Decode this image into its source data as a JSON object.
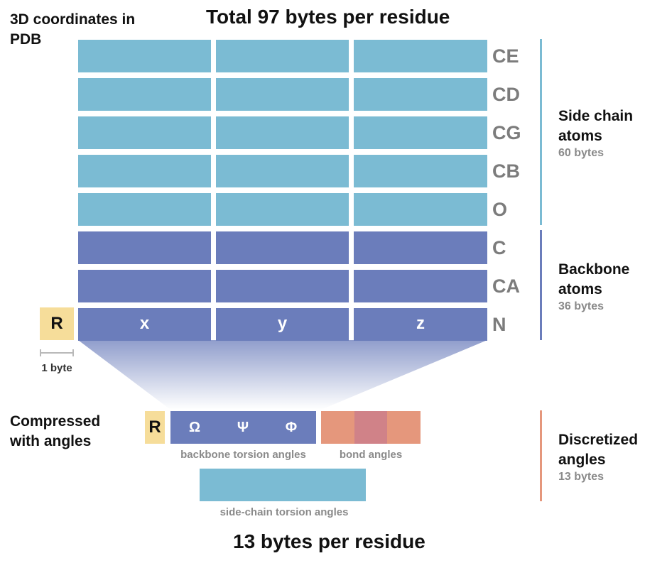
{
  "top_title": "Total 97 bytes per residue",
  "bottom_title": "13 bytes per residue",
  "pdb_label": "3D coordinates in PDB",
  "compressed_label": "Compressed with angles",
  "atoms": [
    "CE",
    "CD",
    "CG",
    "CB",
    "O",
    "C",
    "CA",
    "N"
  ],
  "coords": [
    "x",
    "y",
    "z"
  ],
  "residue_symbol": "R",
  "residue_size": "1 byte",
  "groups": {
    "side_chain": {
      "title": "Side chain atoms",
      "size": "60 bytes"
    },
    "backbone": {
      "title": "Backbone atoms",
      "size": "36 bytes"
    },
    "discretized": {
      "title": "Discretized angles",
      "size": "13 bytes"
    }
  },
  "torsion": {
    "symbols": [
      "Ω",
      "Ψ",
      "Φ"
    ],
    "backbone_caption": "backbone torsion angles",
    "bond_caption": "bond angles",
    "side_chain_caption": "side-chain torsion angles"
  },
  "colors": {
    "side_chain": "#7bbbd3",
    "backbone": "#6b7dbb",
    "residue": "#f6dd9a",
    "bond_angle": "#e5977c",
    "bond_angle_mid": "#d08288",
    "discretized": "#e5977c"
  }
}
